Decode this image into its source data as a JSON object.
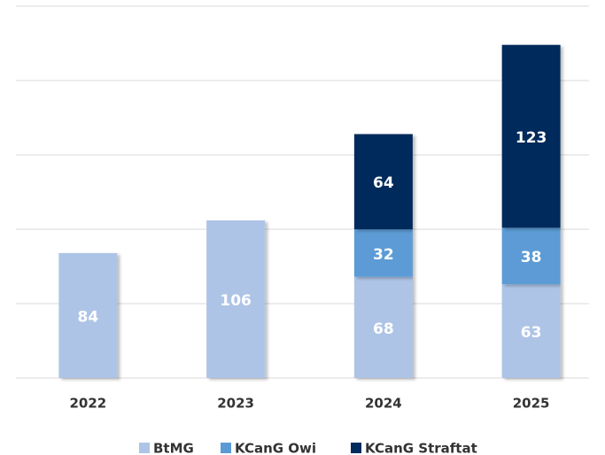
{
  "chart_data": {
    "type": "stacked_bar",
    "categories": [
      "2022",
      "2023",
      "2024",
      "2025"
    ],
    "series": [
      {
        "name": "BtMG",
        "color": "#aec4e6",
        "values": [
          84,
          106,
          68,
          63
        ]
      },
      {
        "name": "KCanG Owi",
        "color": "#5b9bd5",
        "values": [
          null,
          null,
          32,
          38
        ]
      },
      {
        "name": "KCanG Straftat",
        "color": "#002b5c",
        "values": [
          null,
          null,
          64,
          123
        ]
      }
    ],
    "ylim": [
      0,
      250
    ],
    "yticks": [
      0,
      50,
      100,
      150,
      200,
      250
    ],
    "grid": true,
    "legend": "bottom"
  }
}
